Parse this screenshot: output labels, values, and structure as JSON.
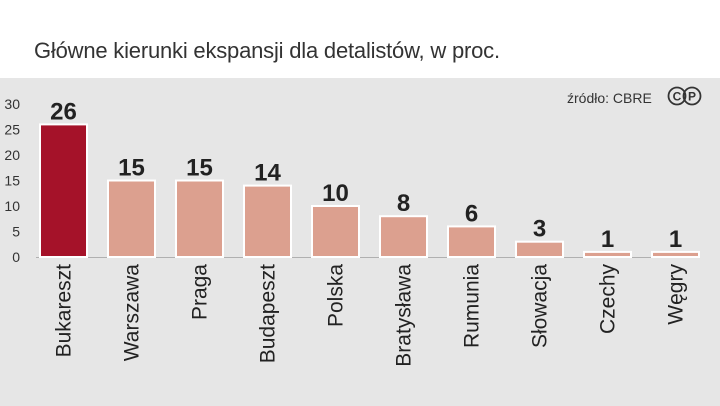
{
  "title": "Główne kierunki ekspansji dla detalistów, w proc.",
  "source": "źródło: CBRE",
  "logo": {
    "left": "C",
    "right": "P"
  },
  "colors": {
    "highlight": "#a51229",
    "bar": "#dca08f",
    "bar_edge": "#ffffff",
    "panel": "#e6e6e6"
  },
  "chart_data": {
    "type": "bar",
    "title": "Główne kierunki ekspansji dla detalistów, w proc.",
    "xlabel": "",
    "ylabel": "",
    "ylim": [
      0,
      30
    ],
    "yticks": [
      0,
      5,
      10,
      15,
      20,
      25,
      30
    ],
    "categories": [
      "Bukareszt",
      "Warszawa",
      "Praga",
      "Budapeszt",
      "Polska",
      "Bratysława",
      "Rumunia",
      "Słowacja",
      "Czechy",
      "Węgry"
    ],
    "values": [
      26,
      15,
      15,
      14,
      10,
      8,
      6,
      3,
      1,
      1
    ],
    "highlight_index": 0,
    "legend": "none",
    "grid": false
  }
}
